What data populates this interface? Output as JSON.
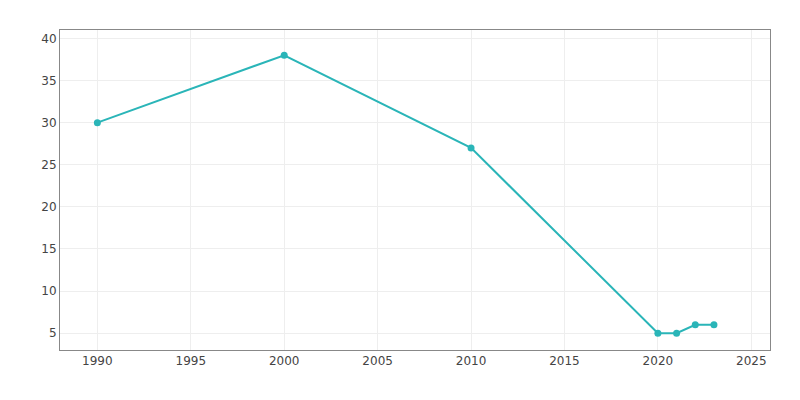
{
  "chart_data": {
    "type": "line",
    "x": [
      1990,
      2000,
      2010,
      2020,
      2021,
      2022,
      2023
    ],
    "values": [
      30,
      38,
      27,
      5,
      5,
      6,
      6
    ],
    "color": "#2ab5b8",
    "marker": "circle",
    "line_style": "solid",
    "xlim": [
      1988,
      2026
    ],
    "xticks": [
      1990,
      1995,
      2000,
      2005,
      2010,
      2015,
      2020,
      2025
    ],
    "ylim": [
      3,
      41
    ],
    "yticks": [
      5,
      10,
      15,
      20,
      25,
      30,
      35,
      40
    ],
    "grid": true
  }
}
